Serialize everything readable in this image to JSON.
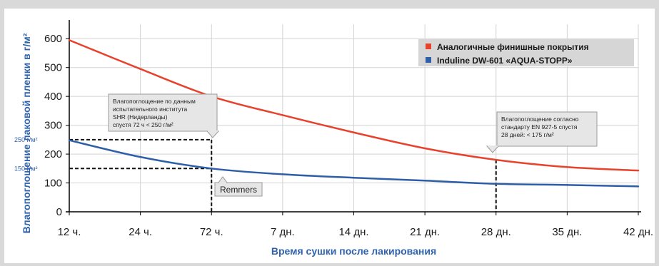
{
  "chart_data": {
    "type": "line",
    "categories": [
      "12 ч.",
      "24 ч.",
      "72 ч.",
      "7 дн.",
      "14 дн.",
      "21 дн.",
      "28 дн.",
      "35 дн.",
      "42 дн."
    ],
    "series": [
      {
        "name": "Аналогичные финишные покрытия",
        "color": "#e8412c",
        "values": [
          595,
          495,
          400,
          335,
          275,
          220,
          180,
          155,
          143
        ]
      },
      {
        "name": "Induline DW-601 «AQUA-STOPP»",
        "color": "#2f5ea8",
        "values": [
          248,
          190,
          150,
          130,
          118,
          108,
          97,
          93,
          88
        ]
      }
    ],
    "xlabel": "Время сушки после лакирования",
    "ylabel": "Влагопоглощение лаковой пленки в г/м²",
    "ylim": [
      0,
      650
    ],
    "yticks": [
      0,
      100,
      200,
      300,
      400,
      500,
      600
    ],
    "grid": true,
    "legend_position": "top-right",
    "reference_labels": [
      {
        "text": "250 г/м²",
        "value": 250
      },
      {
        "text": "150 г/м²",
        "value": 150
      }
    ],
    "annotations": [
      {
        "lines": [
          "Влагопоглощение по данным",
          "испытательного института",
          "SHR (Нидерланды)",
          "спустя 72 ч < 250 г/м²"
        ]
      },
      {
        "lines": [
          "Влагопоглощение согласно",
          "стандарту EN 927-5 спустя",
          "28 дней: < 175 г/м²"
        ]
      }
    ],
    "brand_label": "Remmers"
  }
}
